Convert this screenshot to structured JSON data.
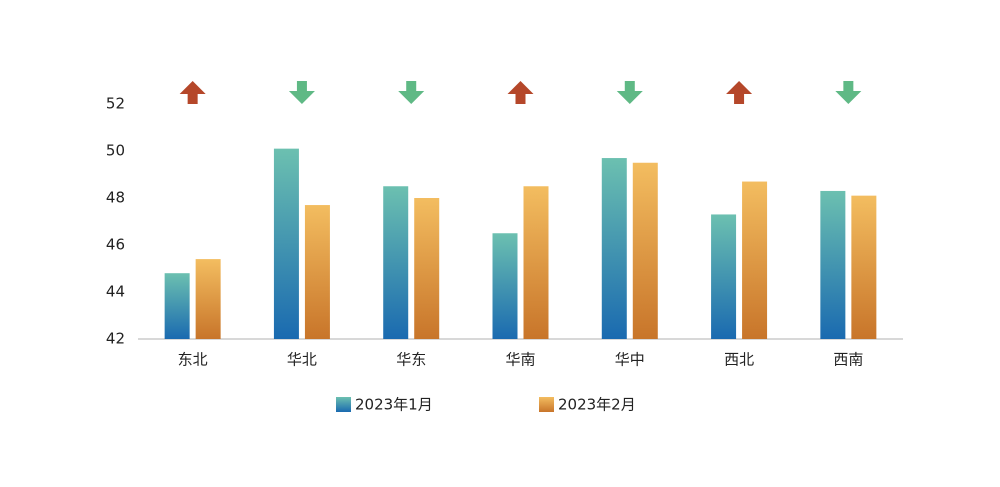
{
  "chart_data": {
    "type": "bar",
    "categories": [
      "东北",
      "华北",
      "华东",
      "华南",
      "华中",
      "西北",
      "西南"
    ],
    "series": [
      {
        "name": "2023年1月",
        "color": [
          "#6cc0b0",
          "#1a6ab0"
        ],
        "values": [
          44.8,
          50.1,
          48.5,
          46.5,
          49.7,
          47.3,
          48.3
        ]
      },
      {
        "name": "2023年2月",
        "color": [
          "#f3bd60",
          "#c8752a"
        ],
        "values": [
          45.4,
          47.7,
          48.0,
          48.5,
          49.5,
          48.7,
          48.1
        ]
      }
    ],
    "ylim": [
      42,
      52
    ],
    "yticks": [
      42,
      44,
      46,
      48,
      50,
      52
    ],
    "grid": false,
    "legend": "bottom",
    "increase_color": "#b5472a",
    "decrease_color": "#5fb985"
  }
}
